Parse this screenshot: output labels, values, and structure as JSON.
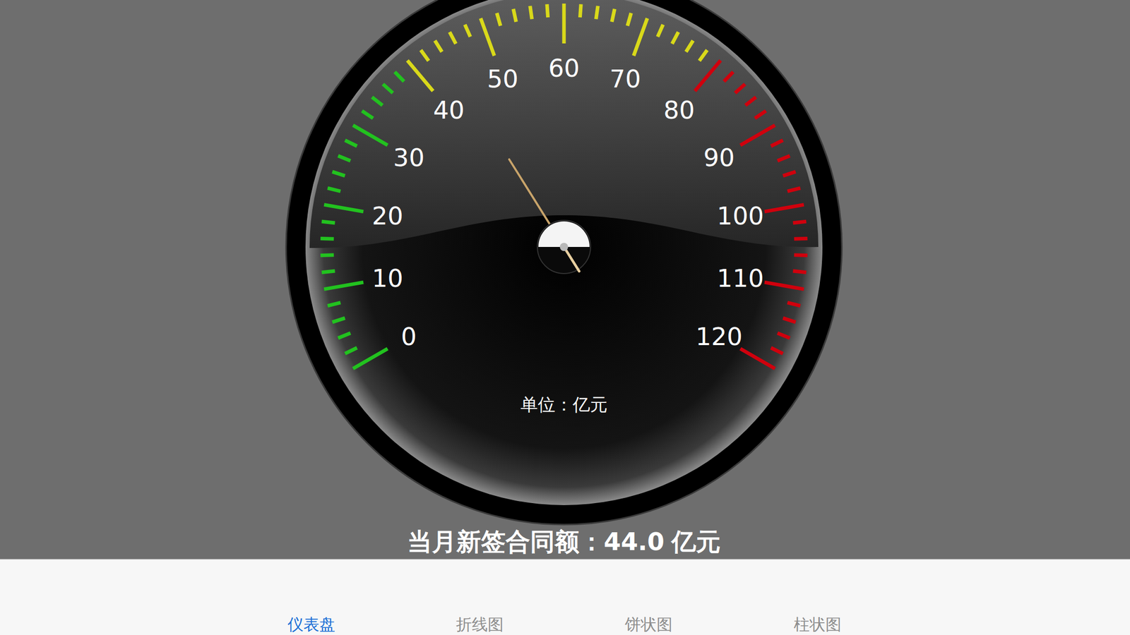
{
  "chart_data": {
    "type": "gauge",
    "range": [
      0,
      120
    ],
    "ticks": [
      0,
      10,
      20,
      30,
      40,
      50,
      60,
      70,
      80,
      90,
      100,
      110,
      120
    ],
    "minor_ticks": [
      2,
      4,
      6,
      8,
      12,
      14,
      16,
      18,
      22,
      24,
      26,
      28,
      32,
      34,
      36,
      38,
      42,
      44,
      46,
      48,
      52,
      54,
      56,
      58,
      62,
      64,
      66,
      68,
      72,
      74,
      76,
      78,
      82,
      84,
      86,
      88,
      92,
      94,
      96,
      98,
      102,
      104,
      106,
      108,
      112,
      114,
      116,
      118
    ],
    "bands": [
      {
        "from": 0,
        "to": 40,
        "color": "#22c21f"
      },
      {
        "from": 40,
        "to": 80,
        "color": "#d9d91a"
      },
      {
        "from": 80,
        "to": 120,
        "color": "#d0000d"
      }
    ],
    "value": 44.0,
    "value_label": "44.0",
    "unit_label": "单位：亿元",
    "label": "当月新签合同额：",
    "unit": "亿元",
    "tabs": [
      "仪表盘",
      "折线图",
      "饼状图",
      "柱状图"
    ],
    "active_tab": "仪表盘"
  }
}
